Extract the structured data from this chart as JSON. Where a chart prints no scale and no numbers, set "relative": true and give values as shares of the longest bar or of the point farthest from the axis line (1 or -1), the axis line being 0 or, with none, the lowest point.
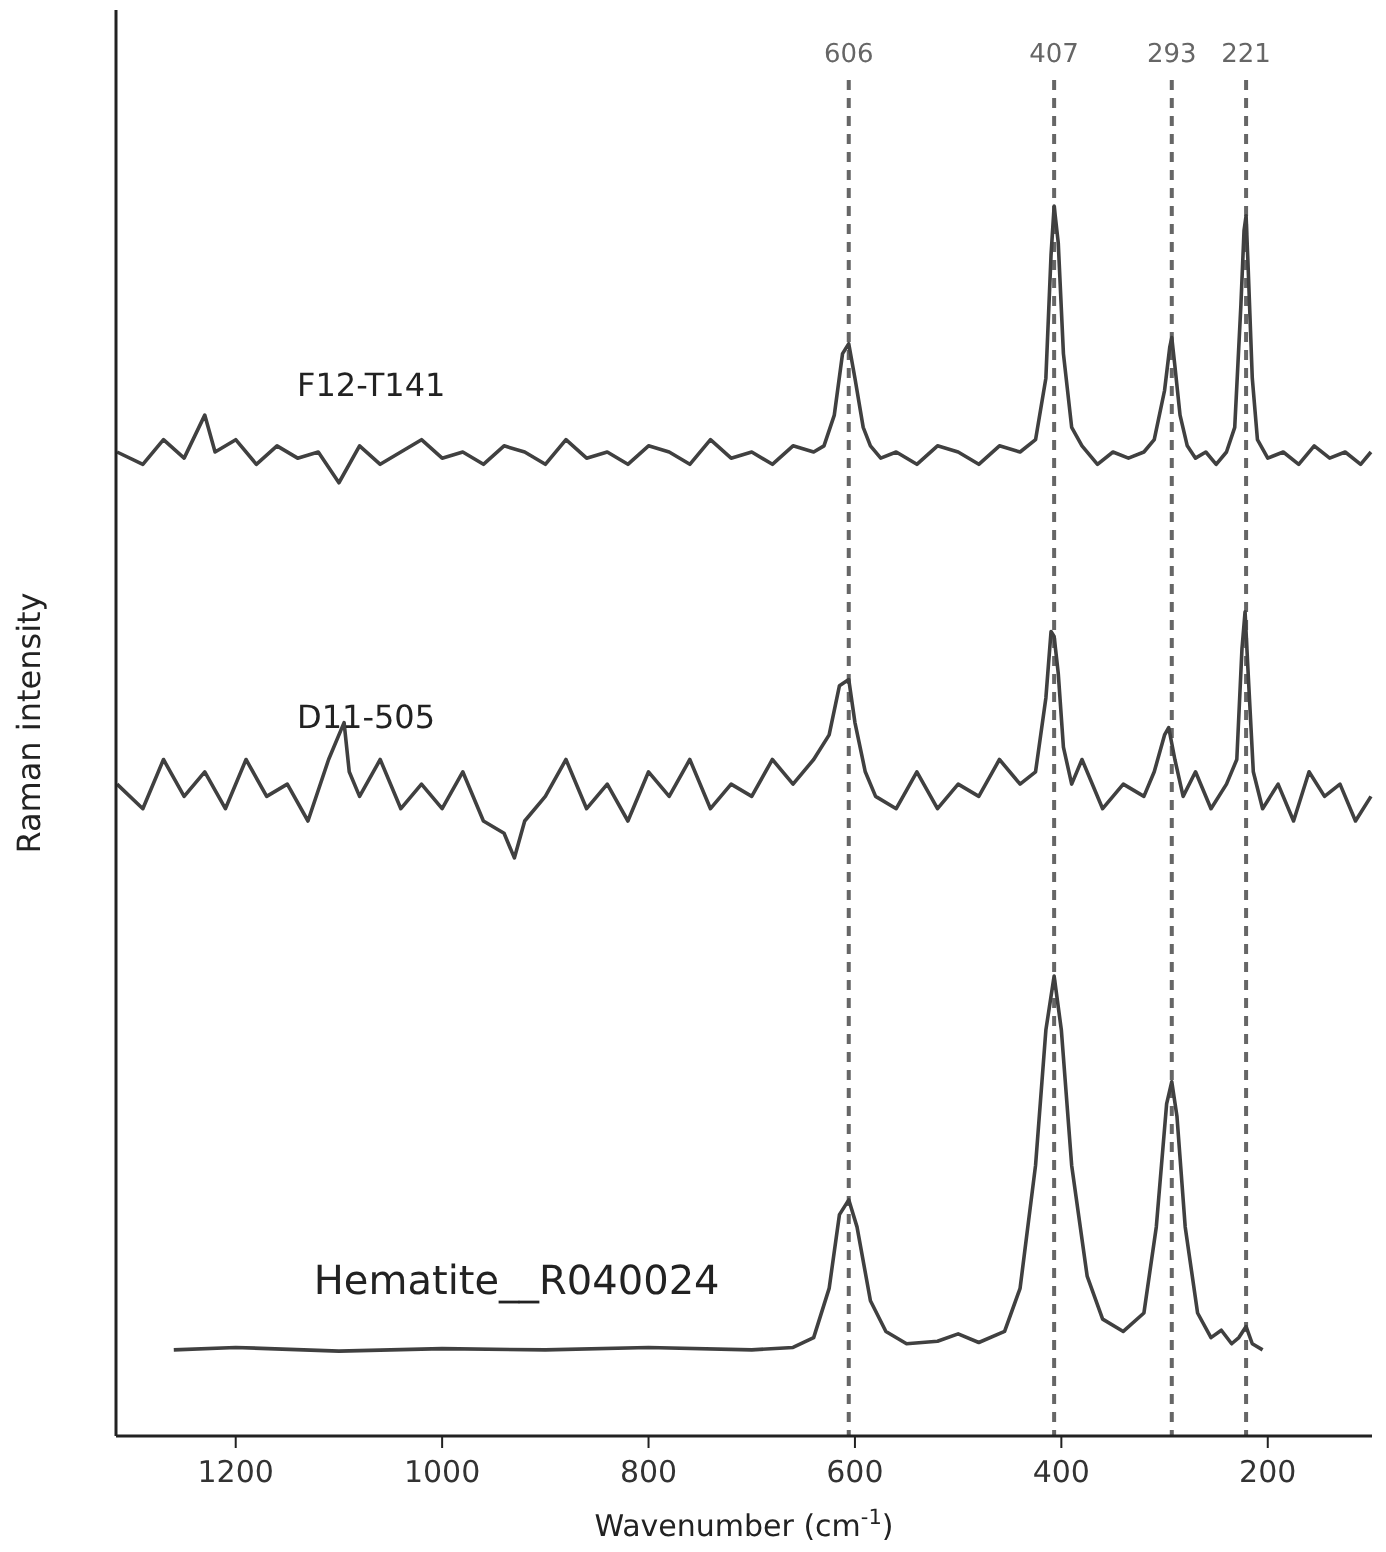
{
  "chart_data": {
    "type": "line",
    "relative": true,
    "xlabel": "Wavenumber (cm$^{-1}$)",
    "ylabel": "Raman intensity",
    "xlim": [
      1316,
      99
    ],
    "xticks": [
      1200,
      1000,
      800,
      600,
      400,
      200
    ],
    "ref_lines": [
      {
        "axis": "x",
        "value": 606,
        "label": "606",
        "color": "#666666",
        "line_style": "dashed"
      },
      {
        "axis": "x",
        "value": 407,
        "label": "407",
        "color": "#666666",
        "line_style": "dashed"
      },
      {
        "axis": "x",
        "value": 293,
        "label": "293",
        "color": "#666666",
        "line_style": "dashed"
      },
      {
        "axis": "x",
        "value": 221,
        "label": "221",
        "color": "#666666",
        "line_style": "dashed"
      }
    ],
    "series": [
      {
        "name": "F12-T141",
        "color": "#404040",
        "x": [
          1315,
          1290,
          1270,
          1250,
          1230,
          1220,
          1200,
          1180,
          1160,
          1140,
          1120,
          1100,
          1080,
          1060,
          1040,
          1020,
          1000,
          980,
          960,
          940,
          920,
          900,
          880,
          860,
          840,
          820,
          800,
          780,
          760,
          740,
          720,
          700,
          680,
          660,
          640,
          630,
          620,
          612,
          606,
          600,
          592,
          585,
          575,
          560,
          540,
          520,
          500,
          480,
          460,
          440,
          425,
          415,
          410,
          407,
          403,
          398,
          390,
          380,
          365,
          350,
          335,
          320,
          310,
          300,
          295,
          293,
          290,
          285,
          278,
          270,
          260,
          250,
          240,
          232,
          226,
          223,
          221,
          219,
          215,
          210,
          200,
          185,
          170,
          155,
          140,
          125,
          110,
          100
        ],
        "values": [
          0.8,
          0.79,
          0.81,
          0.795,
          0.83,
          0.8,
          0.81,
          0.79,
          0.805,
          0.795,
          0.8,
          0.775,
          0.805,
          0.79,
          0.8,
          0.81,
          0.795,
          0.8,
          0.79,
          0.805,
          0.8,
          0.79,
          0.81,
          0.795,
          0.8,
          0.79,
          0.805,
          0.8,
          0.79,
          0.81,
          0.795,
          0.8,
          0.79,
          0.805,
          0.8,
          0.805,
          0.83,
          0.88,
          0.888,
          0.86,
          0.82,
          0.805,
          0.795,
          0.8,
          0.79,
          0.805,
          0.8,
          0.79,
          0.805,
          0.8,
          0.81,
          0.86,
          0.96,
          1.0,
          0.97,
          0.88,
          0.82,
          0.805,
          0.79,
          0.8,
          0.795,
          0.8,
          0.81,
          0.85,
          0.885,
          0.893,
          0.87,
          0.83,
          0.805,
          0.795,
          0.8,
          0.79,
          0.8,
          0.82,
          0.92,
          0.98,
          0.992,
          0.95,
          0.86,
          0.81,
          0.795,
          0.8,
          0.79,
          0.805,
          0.795,
          0.8,
          0.79,
          0.8
        ]
      },
      {
        "name": "D11-505",
        "color": "#404040",
        "x": [
          1315,
          1290,
          1270,
          1250,
          1230,
          1210,
          1190,
          1170,
          1150,
          1130,
          1110,
          1095,
          1090,
          1080,
          1060,
          1040,
          1020,
          1000,
          980,
          960,
          940,
          930,
          920,
          900,
          880,
          860,
          840,
          820,
          800,
          780,
          760,
          740,
          720,
          700,
          680,
          660,
          640,
          625,
          615,
          606,
          600,
          590,
          580,
          560,
          540,
          520,
          500,
          480,
          460,
          440,
          425,
          415,
          410,
          407,
          403,
          398,
          390,
          380,
          360,
          340,
          320,
          310,
          300,
          296,
          290,
          282,
          270,
          255,
          240,
          230,
          225,
          222,
          219,
          214,
          205,
          190,
          175,
          160,
          145,
          130,
          115,
          100
        ],
        "values": [
          0.53,
          0.51,
          0.55,
          0.52,
          0.54,
          0.51,
          0.55,
          0.52,
          0.53,
          0.5,
          0.55,
          0.58,
          0.54,
          0.52,
          0.55,
          0.51,
          0.53,
          0.51,
          0.54,
          0.5,
          0.49,
          0.47,
          0.5,
          0.52,
          0.55,
          0.51,
          0.53,
          0.5,
          0.54,
          0.52,
          0.55,
          0.51,
          0.53,
          0.52,
          0.55,
          0.53,
          0.55,
          0.57,
          0.61,
          0.615,
          0.58,
          0.54,
          0.52,
          0.51,
          0.54,
          0.51,
          0.53,
          0.52,
          0.55,
          0.53,
          0.54,
          0.6,
          0.654,
          0.65,
          0.62,
          0.56,
          0.53,
          0.55,
          0.51,
          0.53,
          0.52,
          0.54,
          0.57,
          0.576,
          0.55,
          0.52,
          0.54,
          0.51,
          0.53,
          0.55,
          0.64,
          0.67,
          0.62,
          0.54,
          0.51,
          0.53,
          0.5,
          0.54,
          0.52,
          0.53,
          0.5,
          0.52
        ]
      },
      {
        "name": "Hematite__R040024",
        "color": "#404040",
        "x": [
          1260,
          1200,
          1100,
          1000,
          900,
          800,
          700,
          660,
          640,
          625,
          615,
          606,
          598,
          585,
          570,
          550,
          520,
          500,
          480,
          455,
          440,
          425,
          415,
          407,
          400,
          390,
          375,
          360,
          340,
          320,
          308,
          298,
          293,
          288,
          280,
          268,
          255,
          245,
          235,
          228,
          221,
          215,
          205
        ],
        "values": [
          0.07,
          0.072,
          0.069,
          0.071,
          0.07,
          0.072,
          0.07,
          0.072,
          0.08,
          0.12,
          0.18,
          0.192,
          0.17,
          0.11,
          0.085,
          0.075,
          0.077,
          0.083,
          0.076,
          0.085,
          0.12,
          0.22,
          0.33,
          0.374,
          0.33,
          0.22,
          0.13,
          0.095,
          0.085,
          0.1,
          0.17,
          0.27,
          0.288,
          0.26,
          0.17,
          0.1,
          0.08,
          0.086,
          0.075,
          0.08,
          0.089,
          0.075,
          0.07
        ]
      }
    ]
  }
}
